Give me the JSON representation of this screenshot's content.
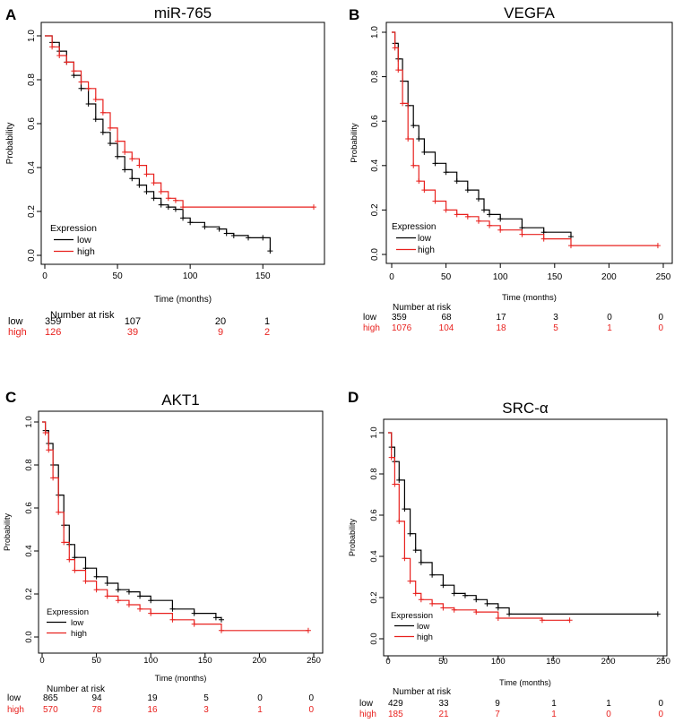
{
  "colors": {
    "low": "#000000",
    "high": "#e8211e"
  },
  "chart_data": [
    {
      "type": "line",
      "panel": "A",
      "title": "miR-765",
      "xlabel": "Time (months)",
      "ylabel": "Probability",
      "xlim": [
        0,
        185
      ],
      "ylim": [
        0,
        1
      ],
      "xticks": [
        0,
        50,
        100,
        150
      ],
      "yticks": [
        0.0,
        0.2,
        0.4,
        0.6,
        0.8,
        1.0
      ],
      "legend": {
        "title": "Expression",
        "entries": [
          "low",
          "high"
        ],
        "position": "bottom-left"
      },
      "series": [
        {
          "name": "low",
          "color": "#000000",
          "x": [
            0,
            5,
            10,
            15,
            20,
            25,
            30,
            35,
            40,
            45,
            50,
            55,
            60,
            65,
            70,
            75,
            80,
            85,
            90,
            95,
            100,
            110,
            120,
            125,
            130,
            140,
            150,
            155
          ],
          "y": [
            1.0,
            0.97,
            0.93,
            0.88,
            0.82,
            0.76,
            0.69,
            0.62,
            0.56,
            0.51,
            0.45,
            0.39,
            0.35,
            0.32,
            0.29,
            0.26,
            0.23,
            0.22,
            0.21,
            0.17,
            0.15,
            0.13,
            0.12,
            0.1,
            0.09,
            0.08,
            0.08,
            0.02
          ]
        },
        {
          "name": "high",
          "color": "#e8211e",
          "x": [
            0,
            5,
            10,
            15,
            20,
            25,
            30,
            35,
            40,
            45,
            50,
            55,
            60,
            65,
            70,
            75,
            80,
            85,
            90,
            95,
            185
          ],
          "y": [
            1.0,
            0.95,
            0.91,
            0.88,
            0.84,
            0.79,
            0.76,
            0.71,
            0.65,
            0.58,
            0.52,
            0.47,
            0.44,
            0.41,
            0.37,
            0.33,
            0.29,
            0.26,
            0.25,
            0.22,
            0.22
          ]
        }
      ],
      "risk_table": {
        "header": "Number at risk",
        "times": [
          0,
          50,
          100,
          150
        ],
        "rows": [
          {
            "label": "low",
            "values": [
              "359",
              "107",
              "20",
              "1"
            ]
          },
          {
            "label": "high",
            "values": [
              "126",
              "39",
              "9",
              "2"
            ]
          }
        ]
      }
    },
    {
      "type": "line",
      "panel": "B",
      "title": "VEGFA",
      "xlabel": "Time (months)",
      "ylabel": "Probability",
      "xlim": [
        0,
        250
      ],
      "ylim": [
        0,
        1
      ],
      "xticks": [
        0,
        50,
        100,
        150,
        200,
        250
      ],
      "yticks": [
        0.0,
        0.2,
        0.4,
        0.6,
        0.8,
        1.0
      ],
      "legend": {
        "title": "Expression",
        "entries": [
          "low",
          "high"
        ],
        "position": "bottom-left"
      },
      "series": [
        {
          "name": "low",
          "color": "#000000",
          "x": [
            0,
            3,
            6,
            10,
            15,
            20,
            25,
            30,
            40,
            50,
            60,
            70,
            80,
            85,
            90,
            100,
            120,
            140,
            165
          ],
          "y": [
            1.0,
            0.95,
            0.88,
            0.78,
            0.67,
            0.58,
            0.52,
            0.46,
            0.41,
            0.37,
            0.33,
            0.29,
            0.25,
            0.2,
            0.18,
            0.16,
            0.12,
            0.1,
            0.08
          ]
        },
        {
          "name": "high",
          "color": "#e8211e",
          "x": [
            0,
            3,
            6,
            10,
            15,
            20,
            25,
            30,
            40,
            50,
            60,
            70,
            80,
            90,
            100,
            120,
            140,
            165,
            245
          ],
          "y": [
            1.0,
            0.93,
            0.83,
            0.68,
            0.52,
            0.4,
            0.33,
            0.29,
            0.24,
            0.2,
            0.18,
            0.17,
            0.15,
            0.13,
            0.11,
            0.09,
            0.07,
            0.04,
            0.04
          ]
        }
      ],
      "risk_table": {
        "header": "Number at risk",
        "times": [
          0,
          50,
          100,
          150,
          200,
          250
        ],
        "rows": [
          {
            "label": "low",
            "values": [
              "359",
              "68",
              "17",
              "3",
              "0",
              "0"
            ]
          },
          {
            "label": "high",
            "values": [
              "1076",
              "104",
              "18",
              "5",
              "1",
              "0"
            ]
          }
        ]
      }
    },
    {
      "type": "line",
      "panel": "C",
      "title": "AKT1",
      "xlabel": "Time (months)",
      "ylabel": "Probability",
      "xlim": [
        0,
        250
      ],
      "ylim": [
        0,
        1
      ],
      "xticks": [
        0,
        50,
        100,
        150,
        200,
        250
      ],
      "yticks": [
        0.0,
        0.2,
        0.4,
        0.6,
        0.8,
        1.0
      ],
      "legend": {
        "title": "Expression",
        "entries": [
          "low",
          "high"
        ],
        "position": "bottom-left"
      },
      "series": [
        {
          "name": "low",
          "color": "#000000",
          "x": [
            0,
            3,
            6,
            10,
            15,
            20,
            25,
            30,
            40,
            50,
            60,
            70,
            80,
            90,
            100,
            120,
            140,
            160,
            165
          ],
          "y": [
            1.0,
            0.96,
            0.9,
            0.8,
            0.66,
            0.52,
            0.43,
            0.37,
            0.32,
            0.28,
            0.25,
            0.22,
            0.21,
            0.19,
            0.17,
            0.13,
            0.11,
            0.09,
            0.08
          ]
        },
        {
          "name": "high",
          "color": "#e8211e",
          "x": [
            0,
            3,
            6,
            10,
            15,
            20,
            25,
            30,
            40,
            50,
            60,
            70,
            80,
            90,
            100,
            120,
            140,
            165,
            245
          ],
          "y": [
            1.0,
            0.95,
            0.87,
            0.74,
            0.58,
            0.44,
            0.36,
            0.31,
            0.26,
            0.22,
            0.19,
            0.17,
            0.15,
            0.13,
            0.11,
            0.08,
            0.06,
            0.03,
            0.03
          ]
        }
      ],
      "risk_table": {
        "header": "Number at risk",
        "times": [
          0,
          50,
          100,
          150,
          200,
          250
        ],
        "rows": [
          {
            "label": "low",
            "values": [
              "865",
              "94",
              "19",
              "5",
              "0",
              "0"
            ]
          },
          {
            "label": "high",
            "values": [
              "570",
              "78",
              "16",
              "3",
              "1",
              "0"
            ]
          }
        ]
      }
    },
    {
      "type": "line",
      "panel": "D",
      "title": "SRC-α",
      "xlabel": "Time (months)",
      "ylabel": "Probability",
      "xlim": [
        0,
        250
      ],
      "ylim": [
        0,
        1
      ],
      "xticks": [
        0,
        50,
        100,
        150,
        200,
        250
      ],
      "yticks": [
        0.0,
        0.2,
        0.4,
        0.6,
        0.8,
        1.0
      ],
      "legend": {
        "title": "Expression",
        "entries": [
          "low",
          "high"
        ],
        "position": "bottom-left"
      },
      "series": [
        {
          "name": "low",
          "color": "#000000",
          "x": [
            0,
            3,
            6,
            10,
            15,
            20,
            25,
            30,
            40,
            50,
            60,
            70,
            80,
            90,
            100,
            110,
            245
          ],
          "y": [
            1.0,
            0.93,
            0.86,
            0.77,
            0.63,
            0.51,
            0.43,
            0.37,
            0.31,
            0.26,
            0.22,
            0.21,
            0.19,
            0.17,
            0.15,
            0.12,
            0.12
          ]
        },
        {
          "name": "high",
          "color": "#e8211e",
          "x": [
            0,
            3,
            6,
            10,
            15,
            20,
            25,
            30,
            40,
            50,
            60,
            80,
            100,
            140,
            165
          ],
          "y": [
            1.0,
            0.88,
            0.75,
            0.57,
            0.39,
            0.28,
            0.22,
            0.19,
            0.17,
            0.15,
            0.14,
            0.13,
            0.1,
            0.09,
            0.09
          ]
        }
      ],
      "risk_table": {
        "header": "Number at risk",
        "times": [
          0,
          50,
          100,
          150,
          200,
          250
        ],
        "rows": [
          {
            "label": "low",
            "values": [
              "429",
              "33",
              "9",
              "1",
              "1",
              "0"
            ]
          },
          {
            "label": "high",
            "values": [
              "185",
              "21",
              "7",
              "1",
              "0",
              "0"
            ]
          }
        ]
      }
    }
  ]
}
